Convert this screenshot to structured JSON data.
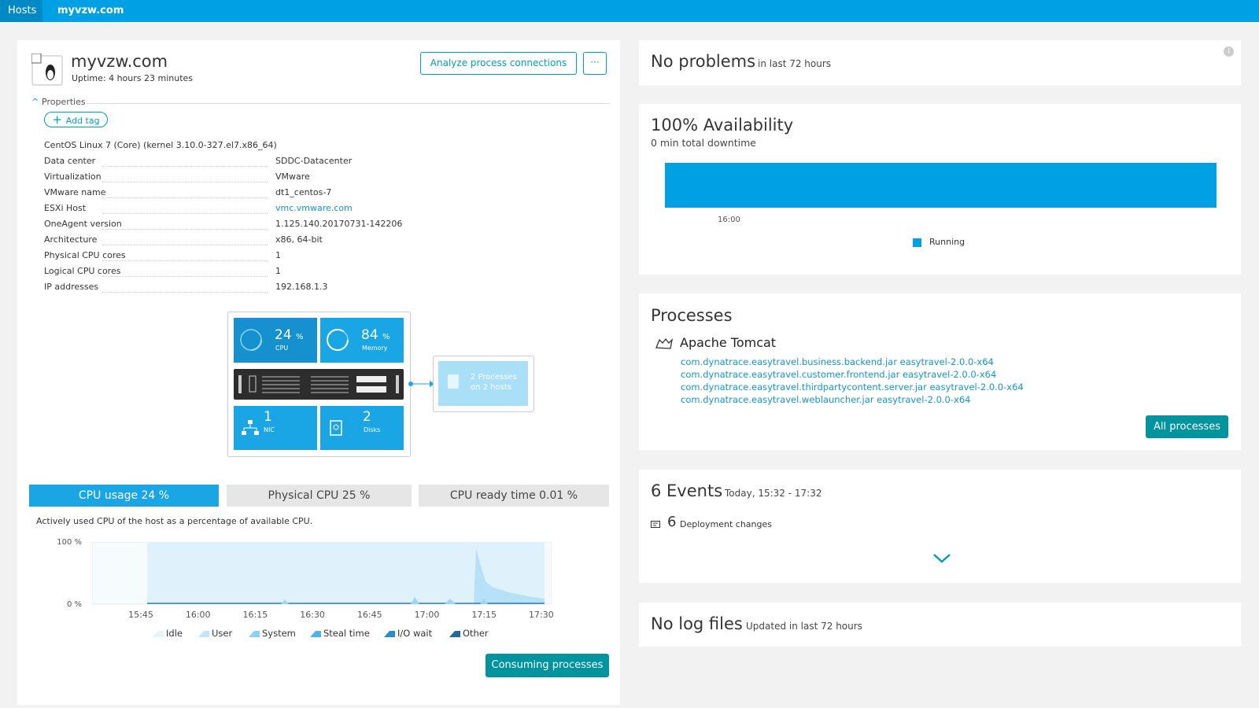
{
  "breadcrumb": [
    "Hosts",
    "myvzw.com"
  ],
  "host": {
    "name": "myvzw.com",
    "uptime": "Uptime: 4 hours 23 minutes",
    "analyze_button": "Analyze process connections",
    "more_button": "···"
  },
  "properties": {
    "heading": "Properties",
    "add_tag": "Add tag",
    "os": "CentOS Linux 7 (Core) (kernel 3.10.0-327.el7.x86_64)",
    "rows": [
      [
        "Data center",
        "SDDC-Datacenter"
      ],
      [
        "Virtualization",
        "VMware"
      ],
      [
        "VMware name",
        "dt1_centos-7"
      ],
      [
        "ESXi Host",
        "vmc.vmware.com"
      ],
      [
        "OneAgent version",
        "1.125.140.20170731-142206"
      ],
      [
        "Architecture",
        "x86, 64-bit"
      ],
      [
        "Physical CPU cores",
        "1"
      ],
      [
        "Logical CPU cores",
        "1"
      ],
      [
        "IP addresses",
        "192.168.1.3"
      ]
    ]
  },
  "infra": {
    "cpu": {
      "value": "24",
      "unit": "%",
      "label": "CPU"
    },
    "memory": {
      "value": "84",
      "unit": "%",
      "label": "Memory"
    },
    "nic": {
      "value": "1",
      "label": "NIC"
    },
    "disks": {
      "value": "2",
      "label": "Disks"
    },
    "processes": [
      "2 Processes",
      "on 2 hosts"
    ]
  },
  "cpu_tabs": [
    "CPU usage 24 %",
    "Physical CPU 25 %",
    "CPU ready time 0.01 %"
  ],
  "cpu_description": "Actively used CPU of the host as a percentage of available CPU.",
  "cpu_chart": {
    "yticks": [
      "100 %",
      "0 %"
    ],
    "xticks": [
      "15:45",
      "16:00",
      "16:15",
      "16:30",
      "16:45",
      "17:00",
      "17:15",
      "17:30"
    ],
    "legend": [
      "Idle",
      "User",
      "System",
      "Steal time",
      "I/O wait",
      "Other"
    ]
  },
  "consuming_button": "Consuming processes",
  "problems": {
    "title": "No problems",
    "subtitle": "in last 72 hours"
  },
  "availability": {
    "title": "100% Availability",
    "subtitle": "0 min total downtime",
    "tick": "16:00",
    "legend": "Running"
  },
  "processes": {
    "title": "Processes",
    "group": "Apache Tomcat",
    "items": [
      "com.dynatrace.easytravel.business.backend.jar easytravel-2.0.0-x64",
      "com.dynatrace.easytravel.customer.frontend.jar easytravel-2.0.0-x64",
      "com.dynatrace.easytravel.thirdpartycontent.server.jar easytravel-2.0.0-x64",
      "com.dynatrace.easytravel.weblauncher.jar easytravel-2.0.0-x64"
    ],
    "button": "All processes"
  },
  "events": {
    "title": "6 Events",
    "range": "Today, 15:32 - 17:32",
    "count": "6",
    "label": "Deployment changes"
  },
  "logs": {
    "title": "No log files",
    "subtitle": "Updated in last 72 hours"
  }
}
